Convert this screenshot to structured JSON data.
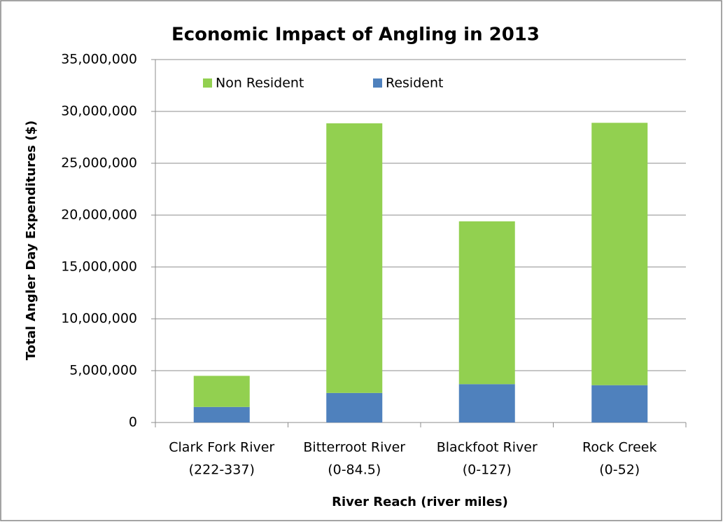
{
  "chart_data": {
    "type": "stacked-bar",
    "title": "Economic Impact of Angling in 2013",
    "x_label": "River Reach (river miles)",
    "y_label": "Total Angler Day Expenditures ($)",
    "categories": [
      [
        "Clark Fork River",
        "(222-337)"
      ],
      [
        "Bitterroot River",
        "(0-84.5)"
      ],
      [
        "Blackfoot River",
        "(0-127)"
      ],
      [
        "Rock Creek",
        "(0-52)"
      ]
    ],
    "series": [
      {
        "name": "Non Resident",
        "color": "#92d050",
        "values": [
          3000000,
          26000000,
          15700000,
          25300000
        ]
      },
      {
        "name": "Resident",
        "color": "#4f81bd",
        "values": [
          1500000,
          2850000,
          3700000,
          3600000
        ]
      }
    ],
    "ylim": [
      0,
      35000000
    ],
    "yticks": [
      0,
      {
        "value": 5000000,
        "label": "5,000,000"
      },
      {
        "value": 10000000,
        "label": "10,000,000"
      },
      {
        "value": 15000000,
        "label": "15,000,000"
      },
      {
        "value": 20000000,
        "label": "20,000,000"
      },
      {
        "value": 25000000,
        "label": "25,000,000"
      },
      {
        "value": 30000000,
        "label": "30,000,000"
      },
      {
        "value": 35000000,
        "label": "35,000,000"
      }
    ],
    "grid": true
  }
}
